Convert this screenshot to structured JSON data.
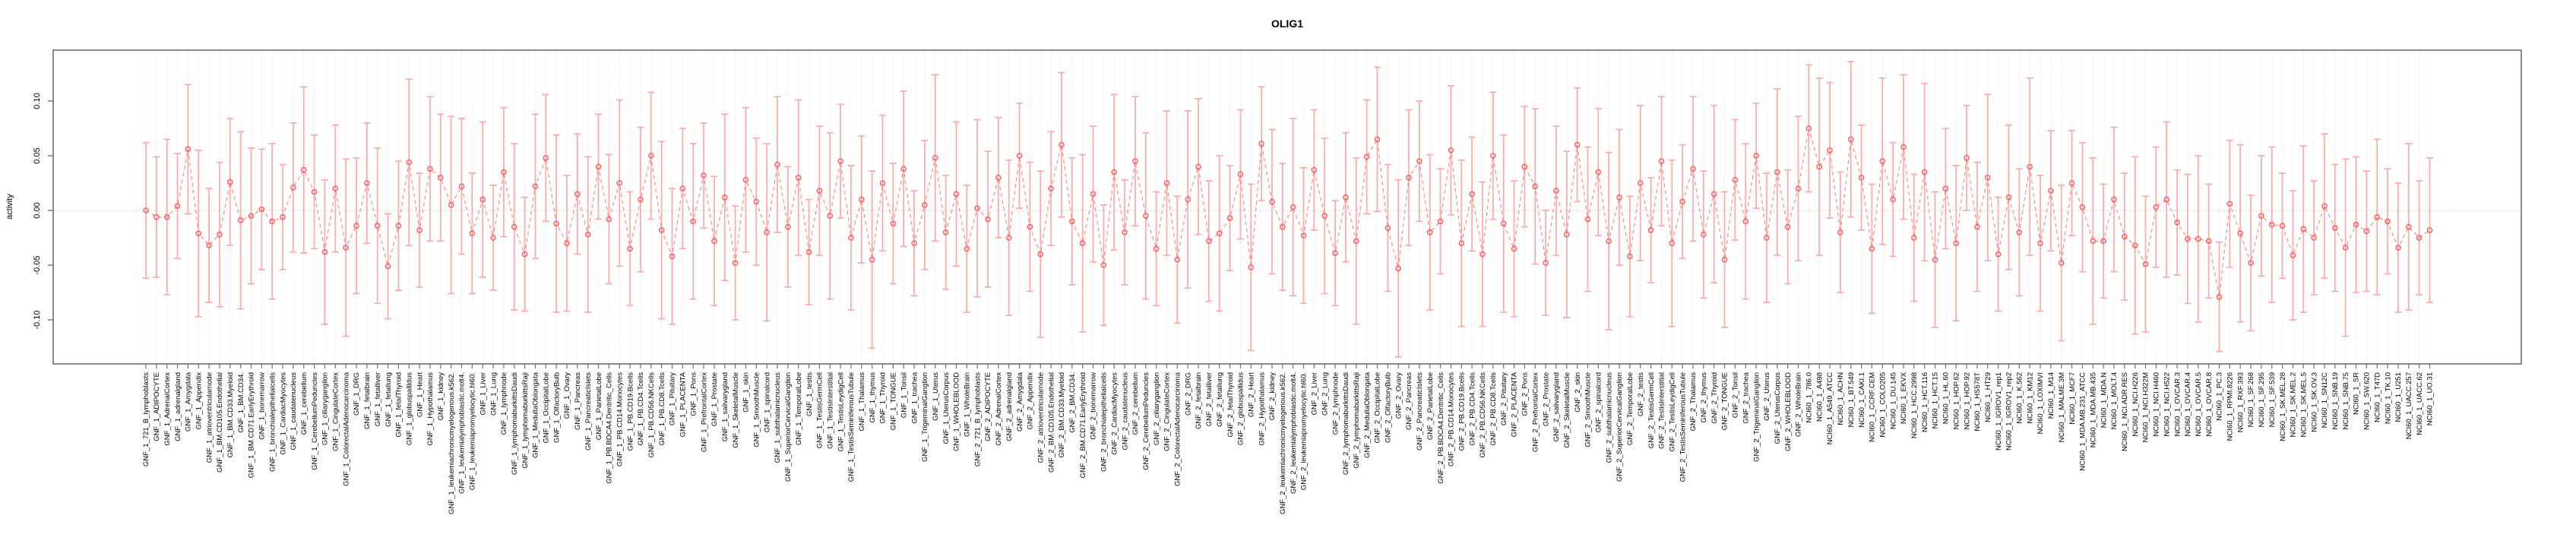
{
  "window": {
    "background": "#ffffff"
  },
  "chart_data": {
    "type": "line",
    "title": "OLIG1",
    "ylabel": "activity",
    "xlabel": "",
    "legend_position": "none",
    "style": "means shown as open circles joined by a dashed salmon line, vertical error bars with end caps, one dotted vertical gridline per category, dotted horizontal reference line at 0",
    "ylim": [
      -0.14,
      0.146
    ],
    "yticks": [
      -0.1,
      -0.05,
      0.0,
      0.05,
      0.1
    ],
    "ytick_labels": [
      "-0.10",
      "-0.05",
      "0.00",
      "0.05",
      "0.10"
    ],
    "colors": {
      "point": "#ff5b5b",
      "line": "#ff8a8a",
      "error_bar": "#ffa8a8",
      "grid": "#dcdcdc",
      "zero_line": "#c4c4c4",
      "box": "#6f6f6f",
      "text": "#000000"
    },
    "categories": [
      "GNF_1_721_B_lymphoblasts",
      "GNF_1_ADIPOCYTE",
      "GNF_1_AdrenalCortex",
      "GNF_1_adrenalgland",
      "GNF_1_Amygdala",
      "GNF_1_Appendix",
      "GNF_1_atrioventricularnode",
      "GNF_1_BM.CD105.Endothelial",
      "GNF_1_BM.CD33.Myeloid",
      "GNF_1_BM.CD34.",
      "GNF_1_BM.CD71.EarlyErythroid",
      "GNF_1_bonemarrow",
      "GNF_1_bronchialepithelialcells",
      "GNF_1_CardiacMyocytes",
      "GNF_1_caudatenucleus",
      "GNF_1_cerebellum",
      "GNF_1_CerebellumPeduncles",
      "GNF_1_ciliaryganglion",
      "GNF_1_CingulateCortex",
      "GNF_1_ColorectalAdenocarcinoma",
      "GNF_1_DRG",
      "GNF_1_fetalbrain",
      "GNF_1_fetalliver",
      "GNF_1_fetallung",
      "GNF_1_fetalThyroid",
      "GNF_1_globuspallidus",
      "GNF_1_Heart",
      "GNF_1_Hypothalamus",
      "GNF_1_kidney",
      "GNF_1_leukemiachronicmyelogenous.k562.",
      "GNF_1_leukemialymphoblastic.molt4.",
      "GNF_1_leukemiapromyelocytic.hl60.",
      "GNF_1_Liver",
      "GNF_1_Lung",
      "GNF_1_lymphnode",
      "GNF_1_lymphomaburkittsDaudi",
      "GNF_1_lymphomaburkittsRaji",
      "GNF_1_MedullaOblongata",
      "GNF_1_OccipitalLobe",
      "GNF_1_OlfactoryBulb",
      "GNF_1_Ovary",
      "GNF_1_Pancreas",
      "GNF_1_PancreaticIslets",
      "GNF_1_ParietalLobe",
      "GNF_1_PB.BDCA4.Dentritic_Cells",
      "GNF_1_PB.CD14.Monocytes",
      "GNF_1_PB.CD19.Bcells",
      "GNF_1_PB.CD4.Tcells",
      "GNF_1_PB.CD56.NKCells",
      "GNF_1_PB.CD8.Tcells",
      "GNF_1_Pituitary",
      "GNF_1_PLACENTA",
      "GNF_1_Pons",
      "GNF_1_PrefrontalCortex",
      "GNF_1_Prostate",
      "GNF_1_salivarygland",
      "GNF_1_SkeletalMuscle",
      "GNF_1_skin",
      "GNF_1_SmoothMuscle",
      "GNF_1_spinalcord",
      "GNF_1_subthalamicnucleus",
      "GNF_1_SuperiorCervicalGanglion",
      "GNF_1_TemporalLobe",
      "GNF_1_testis",
      "GNF_1_TestisGermCell",
      "GNF_1_TestisInterstitial",
      "GNF_1_TestisLeydigCell",
      "GNF_1_TestisSeminiferousTubule",
      "GNF_1_Thalamus",
      "GNF_1_thymus",
      "GNF_1_Thyroid",
      "GNF_1_TONGUE",
      "GNF_1_Tonsil",
      "GNF_1_trachea",
      "GNF_1_TrigeminalGanglion",
      "GNF_1_Uterus",
      "GNF_1_UterusCorpus",
      "GNF_1_WHOLEBLOOD",
      "GNF_1_WholeBrain",
      "GNF_2_721_B_lymphoblasts",
      "GNF_2_ADIPOCYTE",
      "GNF_2_AdrenalCortex",
      "GNF_2_adrenalgland",
      "GNF_2_Amygdala",
      "GNF_2_Appendix",
      "GNF_2_atrioventricularnode",
      "GNF_2_BM.CD105.Endothelial",
      "GNF_2_BM.CD33.Myeloid",
      "GNF_2_BM.CD34.",
      "GNF_2_BM.CD71.EarlyErythroid",
      "GNF_2_bonemarrow",
      "GNF_2_bronchialepithelialcells",
      "GNF_2_CardiacMyocytes",
      "GNF_2_caudatenucleus",
      "GNF_2_cerebellum",
      "GNF_2_CerebellumPeduncles",
      "GNF_2_ciliaryganglion",
      "GNF_2_CingulateCortex",
      "GNF_2_ColorectalAdenocarcinoma",
      "GNF_2_DRG",
      "GNF_2_fetalbrain",
      "GNF_2_fetalliver",
      "GNF_2_fetallung",
      "GNF_2_fetalThyroid",
      "GNF_2_globuspallidus",
      "GNF_2_Heart",
      "GNF_2_Hypothalamus",
      "GNF_2_kidney",
      "GNF_2_leukemiachronicmyelogenous.k562.",
      "GNF_2_leukemialymphoblastic.molt4.",
      "GNF_2_leukemiapromyelocytic.hl60.",
      "GNF_2_Liver",
      "GNF_2_Lung",
      "GNF_2_lymphnode",
      "GNF_2_lymphomaburkittsDaudi",
      "GNF_2_lymphomaburkittsRaji",
      "GNF_2_MedullaOblongata",
      "GNF_2_OccipitalLobe",
      "GNF_2_OlfactoryBulb",
      "GNF_2_Ovary",
      "GNF_2_Pancreas",
      "GNF_2_PancreaticIslets",
      "GNF_2_ParietalLobe",
      "GNF_2_PB.BDCA4.Dentritic_Cells",
      "GNF_2_PB.CD14.Monocytes",
      "GNF_2_PB.CD19.Bcells",
      "GNF_2_PB.CD4.Tcells",
      "GNF_2_PB.CD56.NKCells",
      "GNF_2_PB.CD8.Tcells",
      "GNF_2_Pituitary",
      "GNF_2_PLACENTA",
      "GNF_2_Pons",
      "GNF_2_PrefrontalCortex",
      "GNF_2_Prostate",
      "GNF_2_salivarygland",
      "GNF_2_SkeletalMuscle",
      "GNF_2_skin",
      "GNF_2_SmoothMuscle",
      "GNF_2_spinalcord",
      "GNF_2_subthalamicnucleus",
      "GNF_2_SuperiorCervicalGanglion",
      "GNF_2_TemporalLobe",
      "GNF_2_testis",
      "GNF_2_TestisGermCell",
      "GNF_2_TestisInterstitial",
      "GNF_2_TestisLeydigCell",
      "GNF_2_TestisSeminiferousTubule",
      "GNF_2_Thalamus",
      "GNF_2_thymus",
      "GNF_2_Thyroid",
      "GNF_2_TONGUE",
      "GNF_2_Tonsil",
      "GNF_2_trachea",
      "GNF_2_TrigeminalGanglion",
      "GNF_2_Uterus",
      "GNF_2_UterusCorpus",
      "GNF_2_WHOLEBLOOD",
      "GNF_2_WholeBrain",
      "NCI60_1_786.0",
      "NCI60_1_A498",
      "NCI60_1_A549_ATCC",
      "NCI60_1_ACHN",
      "NCI60_1_BT.549",
      "NCI60_1_CAKI.1",
      "NCI60_1_CCRF.CEM",
      "NCI60_1_COLO205",
      "NCI60_1_DU.145",
      "NCI60_1_EKVX",
      "NCI60_1_HCC.2998",
      "NCI60_1_HCT.116",
      "NCI60_1_HCT.15",
      "NCI60_1_HL.60",
      "NCI60_1_HOP.62",
      "NCI60_1_HOP.92",
      "NCI60_1_HS578T",
      "NCI60_1_HT29",
      "NCI60_1_IGROV1_rep1",
      "NCI60_1_IGROV1_rep2",
      "NCI60_1_K.562",
      "NCI60_1_KM12",
      "NCI60_1_LOXIMVI",
      "NCI60_1_M14",
      "NCI60_1_MALME.3M",
      "NCI60_1_MCF7",
      "NCI60_1_MDA.MB.231_ATCC",
      "NCI60_1_MDA.MB.435",
      "NCI60_1_MDA.N",
      "NCI60_1_MOLT.4",
      "NCI60_1_NCI.ADR.RES",
      "NCI60_1_NCI.H226",
      "NCI60_1_NCI.H322M",
      "NCI60_1_NCI.H460",
      "NCI60_1_NCI.H522",
      "NCI60_1_OVCAR.3",
      "NCI60_1_OVCAR.4",
      "NCI60_1_OVCAR.5",
      "NCI60_1_OVCAR.8",
      "NCI60_1_PC.3",
      "NCI60_1_RPMI.8226",
      "NCI60_1_RXF.393",
      "NCI60_1_SF.268",
      "NCI60_1_SF.295",
      "NCI60_1_SF.539",
      "NCI60_1_SK.MEL.28",
      "NCI60_1_SK.MEL.2",
      "NCI60_1_SK.MEL.5",
      "NCI60_1_SK.OV.3",
      "NCI60_1_SN12C",
      "NCI60_1_SNB.19",
      "NCI60_1_SNB.75",
      "NCI60_1_SR",
      "NCI60_1_SW.620",
      "NCI60_1_T47D",
      "NCI60_1_TK.10",
      "NCI60_1_U251",
      "NCI60_1_UACC.257",
      "NCI60_1_UACC.62",
      "NCI60_1_UO.31"
    ],
    "series": [
      {
        "name": "activity",
        "values": [
          0.0,
          -0.006,
          -0.006,
          0.004,
          0.056,
          -0.021,
          -0.032,
          -0.022,
          0.026,
          -0.009,
          -0.005,
          0.001,
          -0.01,
          -0.006,
          0.021,
          0.037,
          0.017,
          -0.038,
          0.02,
          -0.034,
          -0.014,
          0.025,
          -0.014,
          -0.051,
          -0.014,
          0.044,
          -0.018,
          0.038,
          0.03,
          0.005,
          0.022,
          -0.021,
          0.01,
          -0.025,
          0.035,
          -0.015,
          -0.04,
          0.022,
          0.048,
          -0.012,
          -0.03,
          0.015,
          -0.022,
          0.04,
          -0.008,
          0.025,
          -0.035,
          0.01,
          0.05,
          -0.018,
          -0.042,
          0.02,
          -0.01,
          0.032,
          -0.028,
          0.012,
          -0.048,
          0.028,
          0.008,
          -0.02,
          0.042,
          -0.015,
          0.03,
          -0.038,
          0.018,
          -0.005,
          0.045,
          -0.025,
          0.01,
          -0.045,
          0.025,
          -0.012,
          0.038,
          -0.03,
          0.005,
          0.048,
          -0.02,
          0.015,
          -0.035,
          0.002,
          -0.008,
          0.03,
          -0.025,
          0.05,
          -0.015,
          -0.04,
          0.02,
          0.06,
          -0.01,
          -0.03,
          0.015,
          -0.05,
          0.035,
          -0.02,
          0.045,
          -0.005,
          -0.035,
          0.025,
          -0.045,
          0.01,
          0.04,
          -0.028,
          -0.021,
          -0.007,
          0.033,
          -0.052,
          0.061,
          0.008,
          -0.015,
          0.003,
          -0.023,
          0.037,
          -0.005,
          -0.039,
          0.012,
          -0.028,
          0.049,
          0.065,
          -0.016,
          -0.053,
          0.03,
          0.045,
          -0.02,
          -0.01,
          0.055,
          -0.03,
          0.015,
          -0.04,
          0.05,
          -0.012,
          -0.035,
          0.04,
          0.022,
          -0.048,
          0.018,
          -0.022,
          0.06,
          -0.008,
          0.035,
          -0.028,
          0.012,
          -0.042,
          0.025,
          -0.018,
          0.045,
          -0.03,
          0.008,
          0.038,
          -0.022,
          0.015,
          -0.045,
          0.028,
          -0.01,
          0.05,
          -0.025,
          0.035,
          -0.015,
          0.02,
          0.075,
          0.04,
          0.055,
          -0.02,
          0.065,
          0.03,
          -0.035,
          0.045,
          0.01,
          0.058,
          -0.025,
          0.035,
          -0.045,
          0.02,
          -0.03,
          0.048,
          -0.015,
          0.03,
          -0.04,
          0.012,
          -0.02,
          0.04,
          -0.03,
          0.018,
          -0.048,
          0.025,
          0.003,
          -0.028,
          -0.028,
          0.01,
          -0.024,
          -0.032,
          -0.049,
          0.003,
          0.01,
          -0.011,
          -0.026,
          -0.026,
          -0.028,
          -0.079,
          0.006,
          -0.021,
          -0.048,
          -0.005,
          -0.013,
          -0.014,
          -0.041,
          -0.017,
          -0.025,
          0.004,
          -0.016,
          -0.034,
          -0.013,
          -0.019,
          -0.006,
          -0.01,
          -0.034,
          -0.015,
          -0.025,
          -0.018
        ],
        "error": [
          0.062,
          0.055,
          0.071,
          0.048,
          0.059,
          0.076,
          0.052,
          0.066,
          0.058,
          0.081,
          0.062,
          0.055,
          0.071,
          0.048,
          0.059,
          0.076,
          0.052,
          0.066,
          0.058,
          0.081,
          0.062,
          0.055,
          0.071,
          0.048,
          0.059,
          0.076,
          0.052,
          0.066,
          0.058,
          0.081,
          0.062,
          0.055,
          0.071,
          0.048,
          0.059,
          0.076,
          0.052,
          0.066,
          0.058,
          0.081,
          0.062,
          0.055,
          0.071,
          0.048,
          0.059,
          0.076,
          0.052,
          0.066,
          0.058,
          0.081,
          0.062,
          0.055,
          0.071,
          0.048,
          0.059,
          0.076,
          0.052,
          0.066,
          0.058,
          0.081,
          0.062,
          0.055,
          0.071,
          0.048,
          0.059,
          0.076,
          0.052,
          0.066,
          0.058,
          0.081,
          0.062,
          0.055,
          0.071,
          0.048,
          0.059,
          0.076,
          0.052,
          0.066,
          0.058,
          0.081,
          0.062,
          0.055,
          0.071,
          0.048,
          0.059,
          0.076,
          0.052,
          0.066,
          0.058,
          0.081,
          0.062,
          0.055,
          0.071,
          0.048,
          0.059,
          0.076,
          0.052,
          0.066,
          0.058,
          0.081,
          0.062,
          0.055,
          0.071,
          0.048,
          0.059,
          0.076,
          0.052,
          0.066,
          0.058,
          0.081,
          0.062,
          0.055,
          0.071,
          0.048,
          0.059,
          0.076,
          0.052,
          0.066,
          0.058,
          0.081,
          0.062,
          0.055,
          0.071,
          0.048,
          0.059,
          0.076,
          0.052,
          0.066,
          0.058,
          0.081,
          0.062,
          0.055,
          0.071,
          0.048,
          0.059,
          0.076,
          0.052,
          0.066,
          0.058,
          0.081,
          0.062,
          0.055,
          0.071,
          0.048,
          0.059,
          0.076,
          0.052,
          0.066,
          0.058,
          0.081,
          0.062,
          0.055,
          0.071,
          0.048,
          0.059,
          0.076,
          0.052,
          0.066,
          0.058,
          0.081,
          0.062,
          0.055,
          0.071,
          0.048,
          0.059,
          0.076,
          0.052,
          0.066,
          0.058,
          0.081,
          0.062,
          0.055,
          0.071,
          0.048,
          0.059,
          0.076,
          0.052,
          0.066,
          0.058,
          0.081,
          0.062,
          0.055,
          0.071,
          0.048,
          0.059,
          0.076,
          0.052,
          0.066,
          0.058,
          0.081,
          0.062,
          0.055,
          0.071,
          0.048,
          0.059,
          0.076,
          0.052,
          0.05,
          0.058,
          0.081,
          0.062,
          0.055,
          0.071,
          0.048,
          0.059,
          0.076,
          0.052,
          0.066,
          0.058,
          0.081,
          0.062,
          0.055,
          0.071,
          0.048,
          0.059,
          0.076,
          0.052,
          0.066
        ]
      }
    ]
  }
}
